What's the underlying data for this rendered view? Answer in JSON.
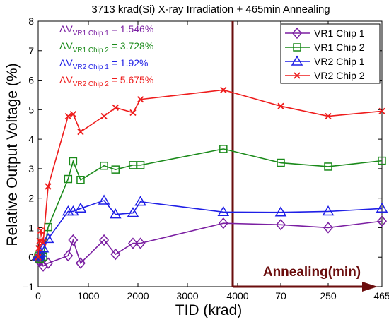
{
  "chart_data": {
    "type": "line",
    "title": "3713 krad(Si) X-ray Irradiation + 465min Annealing",
    "xlabel": "TID (krad)",
    "ylabel": "Relative Output Voltage (%)",
    "ylim": [
      -1,
      8
    ],
    "yticks": [
      "−1",
      "0",
      "1",
      "2",
      "3",
      "4",
      "5",
      "6",
      "7",
      "8"
    ],
    "xticks": [
      "0",
      "1000",
      "2000",
      "3000",
      "4000",
      "70",
      "250",
      "465"
    ],
    "grid": false,
    "legend_position": "top-right",
    "annealing_label": "Annealing(min)",
    "annotations": [
      {
        "prefix": "ΔV",
        "sub": "VR1 Chip 1",
        "suffix": " = 1.546%",
        "color": "#7b1fa2"
      },
      {
        "prefix": "ΔV",
        "sub": "VR1 Chip 2",
        "suffix": " = 3.728%",
        "color": "#1a8a1a"
      },
      {
        "prefix": "ΔV",
        "sub": "VR2 Chip 1",
        "suffix": " = 1.92%",
        "color": "#1f1fe6"
      },
      {
        "prefix": "ΔV",
        "sub": "VR2 Chip 2",
        "suffix": " = 5.675%",
        "color": "#ee1c1c"
      }
    ],
    "series": [
      {
        "name": "VR1 Chip 1",
        "color": "#7b1fa2",
        "marker": "diamond",
        "x": [
          0,
          10,
          30,
          50,
          100,
          200,
          600,
          700,
          850,
          1320,
          1550,
          1900,
          2050,
          3713,
          "70",
          "250",
          "465"
        ],
        "y": [
          0,
          -0.1,
          -0.15,
          -0.1,
          -0.3,
          -0.2,
          0.05,
          0.58,
          -0.2,
          0.58,
          0.1,
          0.47,
          0.47,
          1.15,
          1.1,
          1.0,
          1.22
        ]
      },
      {
        "name": "VR1 Chip 2",
        "color": "#1a8a1a",
        "marker": "square",
        "x": [
          0,
          10,
          30,
          50,
          100,
          200,
          600,
          700,
          850,
          1320,
          1550,
          1900,
          2050,
          3713,
          "70",
          "250",
          "465"
        ],
        "y": [
          0,
          0.05,
          -0.05,
          0.0,
          0.02,
          1.02,
          2.65,
          3.25,
          2.62,
          3.1,
          2.97,
          3.12,
          3.12,
          3.67,
          3.2,
          3.07,
          3.27
        ]
      },
      {
        "name": "VR2 Chip 1",
        "color": "#1f1fe6",
        "marker": "triangle",
        "x": [
          0,
          10,
          30,
          50,
          100,
          200,
          600,
          700,
          850,
          1320,
          1550,
          1900,
          2050,
          3713,
          "70",
          "250",
          "465"
        ],
        "y": [
          0,
          0.05,
          0.1,
          0.15,
          0.3,
          0.62,
          1.55,
          1.55,
          1.65,
          1.92,
          1.45,
          1.5,
          1.88,
          1.53,
          1.52,
          1.55,
          1.65
        ]
      },
      {
        "name": "VR2 Chip 2",
        "color": "#ee1c1c",
        "marker": "x",
        "x": [
          0,
          10,
          30,
          50,
          100,
          200,
          600,
          700,
          850,
          1320,
          1550,
          1900,
          2050,
          3713,
          "70",
          "250",
          "465"
        ],
        "y": [
          0,
          0.3,
          0.55,
          0.9,
          0.5,
          2.4,
          4.78,
          4.85,
          4.25,
          4.78,
          5.07,
          4.9,
          5.35,
          5.67,
          5.12,
          4.78,
          4.95
        ]
      }
    ]
  }
}
